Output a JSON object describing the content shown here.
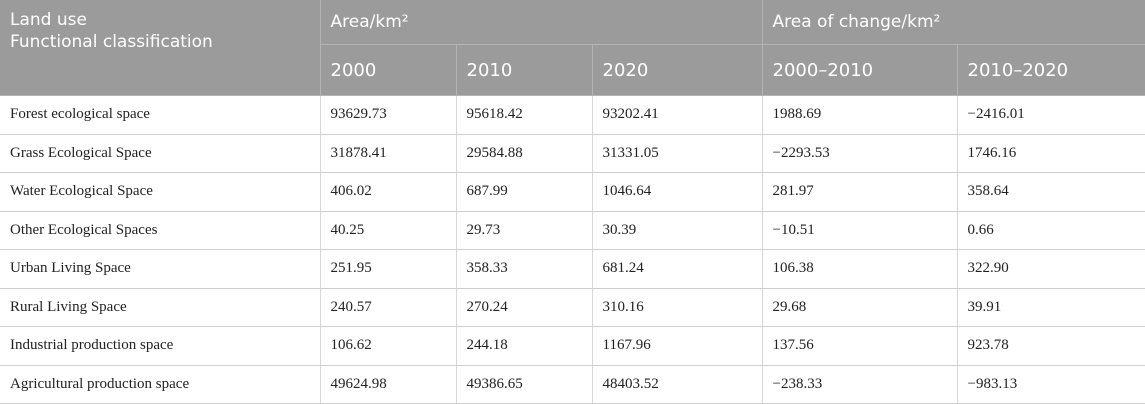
{
  "table": {
    "header": {
      "landuse_line1": "Land use",
      "landuse_line2": "Functional classification",
      "area_label": "Area/km²",
      "change_label": "Area of change/km²",
      "years": [
        "2000",
        "2010",
        "2020"
      ],
      "periods": [
        "2000–2010",
        "2010–2020"
      ]
    },
    "rows": [
      {
        "name": "Forest ecological space",
        "v2000": "93629.73",
        "v2010": "95618.42",
        "v2020": "93202.41",
        "c1": "1988.69",
        "c2": "−2416.01"
      },
      {
        "name": "Grass Ecological Space",
        "v2000": "31878.41",
        "v2010": "29584.88",
        "v2020": "31331.05",
        "c1": "−2293.53",
        "c2": "1746.16"
      },
      {
        "name": "Water Ecological Space",
        "v2000": "406.02",
        "v2010": "687.99",
        "v2020": "1046.64",
        "c1": "281.97",
        "c2": "358.64"
      },
      {
        "name": "Other Ecological Spaces",
        "v2000": "40.25",
        "v2010": "29.73",
        "v2020": "30.39",
        "c1": "−10.51",
        "c2": "0.66"
      },
      {
        "name": "Urban Living Space",
        "v2000": "251.95",
        "v2010": "358.33",
        "v2020": "681.24",
        "c1": "106.38",
        "c2": "322.90"
      },
      {
        "name": "Rural Living Space",
        "v2000": "240.57",
        "v2010": "270.24",
        "v2020": "310.16",
        "c1": "29.68",
        "c2": "39.91"
      },
      {
        "name": "Industrial production space",
        "v2000": "106.62",
        "v2010": "244.18",
        "v2020": "1167.96",
        "c1": "137.56",
        "c2": "923.78"
      },
      {
        "name": "Agricultural production space",
        "v2000": "49624.98",
        "v2010": "49386.65",
        "v2020": "48403.52",
        "c1": "−238.33",
        "c2": "−983.13"
      }
    ]
  }
}
